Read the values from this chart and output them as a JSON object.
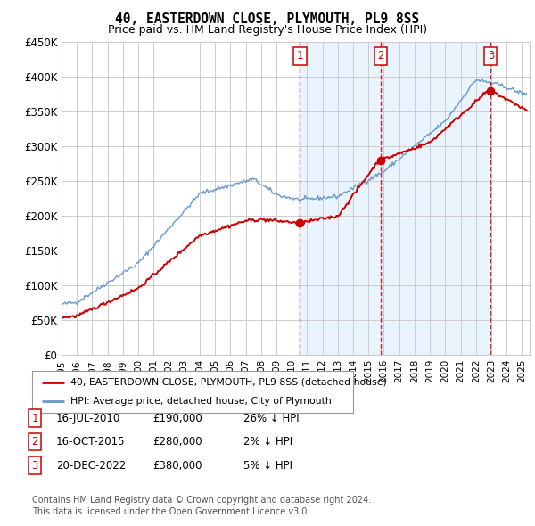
{
  "title": "40, EASTERDOWN CLOSE, PLYMOUTH, PL9 8SS",
  "subtitle": "Price paid vs. HM Land Registry's House Price Index (HPI)",
  "legend_line1": "40, EASTERDOWN CLOSE, PLYMOUTH, PL9 8SS (detached house)",
  "legend_line2": "HPI: Average price, detached house, City of Plymouth",
  "sales": [
    {
      "num": 1,
      "date": "16-JUL-2010",
      "price": 190000,
      "pct": "26%",
      "dir": "↓",
      "year": 2010.54
    },
    {
      "num": 2,
      "date": "16-OCT-2015",
      "price": 280000,
      "pct": "2%",
      "dir": "↓",
      "year": 2015.79
    },
    {
      "num": 3,
      "date": "20-DEC-2022",
      "price": 380000,
      "pct": "5%",
      "dir": "↓",
      "year": 2022.97
    }
  ],
  "footer_line1": "Contains HM Land Registry data © Crown copyright and database right 2024.",
  "footer_line2": "This data is licensed under the Open Government Licence v3.0.",
  "ylim": [
    0,
    450000
  ],
  "yticks": [
    0,
    50000,
    100000,
    150000,
    200000,
    250000,
    300000,
    350000,
    400000,
    450000
  ],
  "ytick_labels": [
    "£0",
    "£50K",
    "£100K",
    "£150K",
    "£200K",
    "£250K",
    "£300K",
    "£350K",
    "£400K",
    "£450K"
  ],
  "hpi_color": "#6699cc",
  "price_color": "#cc0000",
  "vline_color": "#cc0000",
  "box_color": "#cc0000",
  "shade_color": "#ddeeff",
  "grid_color": "#cccccc",
  "bg_color": "#ffffff",
  "legend_bg": "#f5f5f5",
  "xlim_start": 1995,
  "xlim_end": 2025.5
}
